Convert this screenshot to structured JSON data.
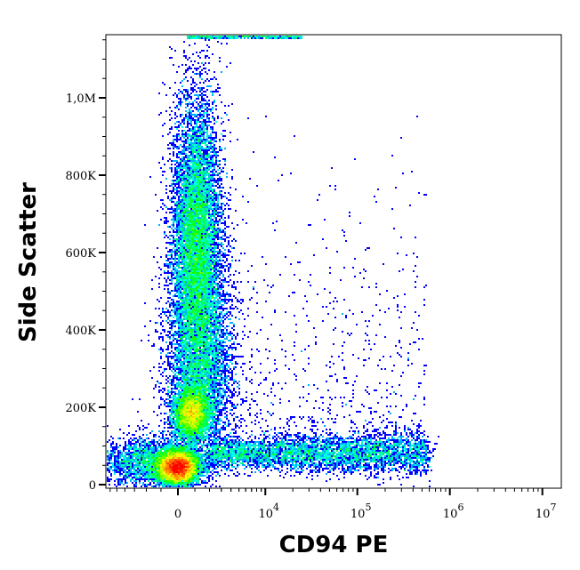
{
  "chart_data": {
    "type": "scatter",
    "subtype": "density-pseudocolor",
    "xlabel": "CD94 PE",
    "ylabel": "Side Scatter",
    "x_scale": "biexponential",
    "y_scale": "linear",
    "xlim": [
      -7000,
      16000000
    ],
    "ylim": [
      -10000,
      1170000
    ],
    "x_ticks": [
      {
        "value": 0,
        "base": "0",
        "exp": ""
      },
      {
        "value": 10000,
        "base": "10",
        "exp": "4"
      },
      {
        "value": 100000,
        "base": "10",
        "exp": "5"
      },
      {
        "value": 1000000,
        "base": "10",
        "exp": "6"
      },
      {
        "value": 10000000,
        "base": "10",
        "exp": "7"
      }
    ],
    "y_ticks": [
      {
        "value": 0,
        "label": "0"
      },
      {
        "value": 200000,
        "label": "200K"
      },
      {
        "value": 400000,
        "label": "400K"
      },
      {
        "value": 600000,
        "label": "600K"
      },
      {
        "value": 800000,
        "label": "800K"
      },
      {
        "value": 1000000,
        "label": "1,0M"
      }
    ],
    "populations": [
      {
        "x": 0,
        "y": 45000,
        "density": "highest"
      },
      {
        "x": 800,
        "y": 185000,
        "density": "high"
      },
      {
        "x": 1100,
        "y": 610000,
        "density": "medium"
      },
      {
        "x_range": [
          3000,
          400000
        ],
        "y": 80000,
        "density": "low"
      }
    ],
    "colormap": [
      "#0000ff",
      "#00ffff",
      "#00ff00",
      "#ffff00",
      "#ff0000"
    ],
    "grid": false,
    "legend": "none"
  }
}
